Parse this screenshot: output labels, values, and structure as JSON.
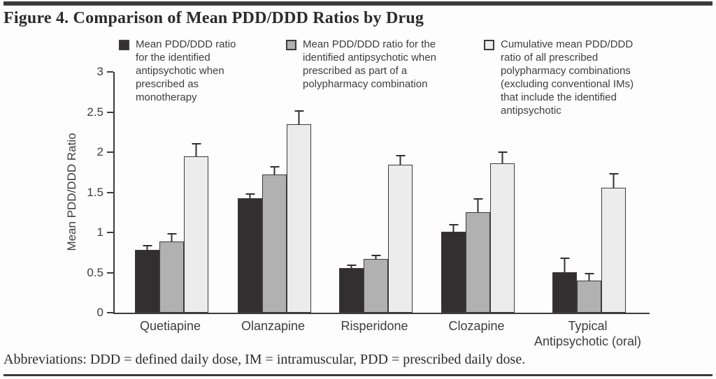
{
  "figure": {
    "title": "Figure 4. Comparison of Mean PDD/DDD Ratios by Drug",
    "footnote": "Abbreviations: DDD = defined daily dose, IM = intramuscular, PDD = prescribed daily dose."
  },
  "chart_data": {
    "type": "bar",
    "title": "Figure 4. Comparison of Mean PDD/DDD Ratios by Drug",
    "xlabel": "",
    "ylabel": "Mean PDD/DDD Ratio",
    "ylim": [
      0,
      3
    ],
    "yticks": [
      0,
      0.5,
      1,
      1.5,
      2,
      2.5,
      3
    ],
    "grid": false,
    "legend_position": "top",
    "error_bars": "upper only",
    "categories": [
      "Quetiapine",
      "Olanzapine",
      "Risperidone",
      "Clozapine",
      "Typical Antipsychotic (oral)"
    ],
    "tick_labels": [
      "Quetiapine",
      "Olanzapine",
      "Risperidone",
      "Clozapine",
      "Typical\nAntipsychotic (oral)"
    ],
    "series": [
      {
        "name": "Mean PDD/DDD ratio for the identified antipsychotic when prescribed as monotherapy",
        "color": "#332e30",
        "values": [
          0.78,
          1.43,
          0.56,
          1.01,
          0.5
        ],
        "error_plus": [
          0.07,
          0.07,
          0.05,
          0.1,
          0.19
        ]
      },
      {
        "name": "Mean PDD/DDD ratio for the identified antipsychotic when prescribed as part of a polypharmacy combination",
        "color": "#b1b1b1",
        "values": [
          0.89,
          1.72,
          0.67,
          1.25,
          0.4
        ],
        "error_plus": [
          0.11,
          0.11,
          0.06,
          0.18,
          0.1
        ]
      },
      {
        "name": "Cumulative mean PDD/DDD ratio of all prescribed polypharmacy combinations (excluding conventional IMs) that include the identified antipsychotic",
        "color": "#ececec",
        "values": [
          1.95,
          2.35,
          1.84,
          1.86,
          1.56
        ],
        "error_plus": [
          0.17,
          0.18,
          0.13,
          0.16,
          0.19
        ]
      }
    ]
  },
  "colors": {
    "axis": "#3b3b3b",
    "error_bar": "#332e30",
    "rule": "#3b3b3b",
    "text": "#3d3d3d"
  }
}
